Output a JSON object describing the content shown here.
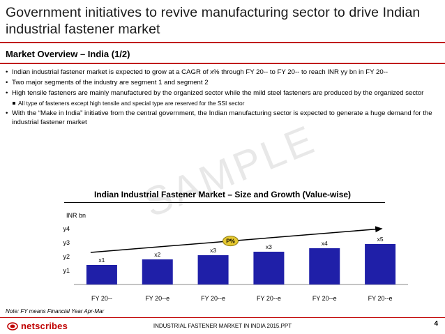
{
  "header": {
    "title": "Government initiatives to revive manufacturing sector to drive Indian industrial fastener market",
    "subtitle": "Market Overview – India (1/2)"
  },
  "bullets": [
    "Indian industrial fastener market is expected to grow at a CAGR of x% through FY 20-- to FY 20-- to reach INR yy bn in FY 20--",
    "Two major segments of the industry are segment 1 and segment 2",
    "High tensile fasteners are mainly manufactured by the organized sector while the mild steel fasteners are produced by the organized sector",
    "All type of fasteners except high tensile and special type are reserved for the SSI sector",
    "With the “Make in India” initiative from the central government, the Indian manufacturing sector is expected to generate a huge demand for the industrial fastener market"
  ],
  "watermark": "SAMPLE",
  "chart_data": {
    "type": "bar",
    "title": "Indian Industrial Fastener Market – Size and Growth (Value-wise)",
    "ylabel": "INR bn",
    "yticks": [
      "y1",
      "y2",
      "y3",
      "y4"
    ],
    "categories": [
      "FY 20--",
      "FY 20--e",
      "FY 20--e",
      "FY 20--e",
      "FY 20--e",
      "FY 20--e"
    ],
    "values": [
      1.4,
      1.8,
      2.1,
      2.35,
      2.6,
      2.9
    ],
    "ylim": [
      0,
      4
    ],
    "data_labels": [
      "x1",
      "x2",
      "x3",
      "x3",
      "x4",
      "x5"
    ],
    "growth_label": "P%",
    "bar_color": "#1f1fa8",
    "grid": false
  },
  "note": "Note: FY means Financial Year Apr-Mar",
  "footer": {
    "logo_text": "netscribes",
    "doc_name": "INDUSTRIAL FASTENER MARKET IN INDIA 2015.PPT",
    "page": "4"
  }
}
